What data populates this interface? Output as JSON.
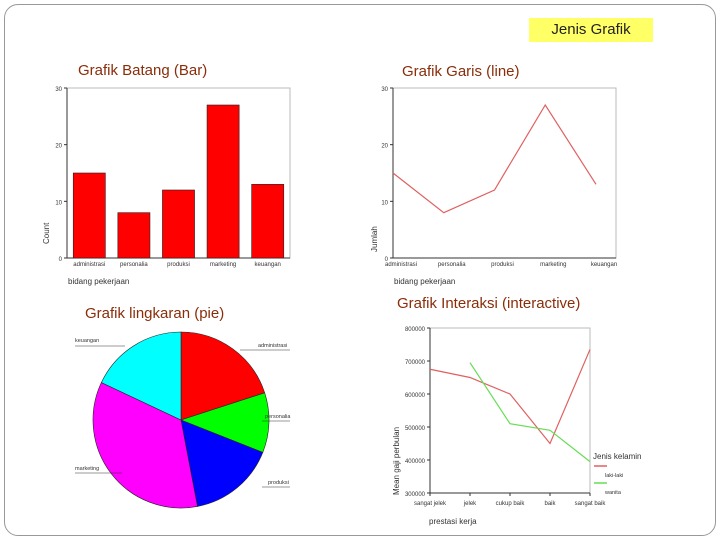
{
  "header": {
    "badge": "Jenis Grafik"
  },
  "sections": {
    "bar_title": "Grafik Batang (Bar)",
    "line_title": "Grafik Garis (line)",
    "pie_title": "Grafik lingkaran (pie)",
    "interactive_title": "Grafik Interaksi (interactive)"
  },
  "colors": {
    "title": "#8a2d0a",
    "badge_bg": "#ffff66",
    "bar": "#ff0000",
    "line": "#e06060",
    "female": "#66dd55"
  },
  "chart_data": [
    {
      "type": "bar",
      "categories": [
        "administrasi",
        "personalia",
        "produksi",
        "marketing",
        "keuangan"
      ],
      "values": [
        15,
        8,
        12,
        27,
        13
      ],
      "xlabel": "bidang pekerjaan",
      "ylabel": "Count",
      "ylim": [
        0,
        30
      ],
      "yticks": [
        "0",
        "10",
        "20",
        "30"
      ]
    },
    {
      "type": "line",
      "categories": [
        "administrasi",
        "personalia",
        "produksi",
        "marketing",
        "keuangan"
      ],
      "values": [
        15,
        8,
        12,
        27,
        13
      ],
      "xlabel": "bidang pekerjaan",
      "ylabel": "Jumlah",
      "ylim": [
        0,
        30
      ],
      "yticks": [
        "0",
        "10",
        "20",
        "30"
      ]
    },
    {
      "type": "pie",
      "slices": [
        {
          "label": "administrasi",
          "value": 20,
          "color": "#ff0000"
        },
        {
          "label": "personalia",
          "value": 11,
          "color": "#00ff00"
        },
        {
          "label": "produksi",
          "value": 16,
          "color": "#0000ff"
        },
        {
          "label": "marketing",
          "value": 35,
          "color": "#ff00ff"
        },
        {
          "label": "keuangan",
          "value": 18,
          "color": "#00ffff"
        }
      ]
    },
    {
      "type": "line",
      "categories": [
        "sangat jelek",
        "jelek",
        "cukup baik",
        "baik",
        "sangat baik"
      ],
      "series": [
        {
          "name": "laki-laki",
          "values": [
            675000,
            650000,
            600000,
            450000,
            735000
          ],
          "color": "#e06060"
        },
        {
          "name": "wanita",
          "values": [
            null,
            695000,
            510000,
            490000,
            395000
          ],
          "color": "#66dd55"
        }
      ],
      "xlabel": "prestasi kerja",
      "ylabel": "Mean gaji perbulan",
      "ylim": [
        300000,
        800000
      ],
      "yticks": [
        "300000",
        "400000",
        "500000",
        "600000",
        "700000",
        "800000"
      ],
      "legend_title": "Jenis kelamin",
      "legend_position": "right"
    }
  ]
}
